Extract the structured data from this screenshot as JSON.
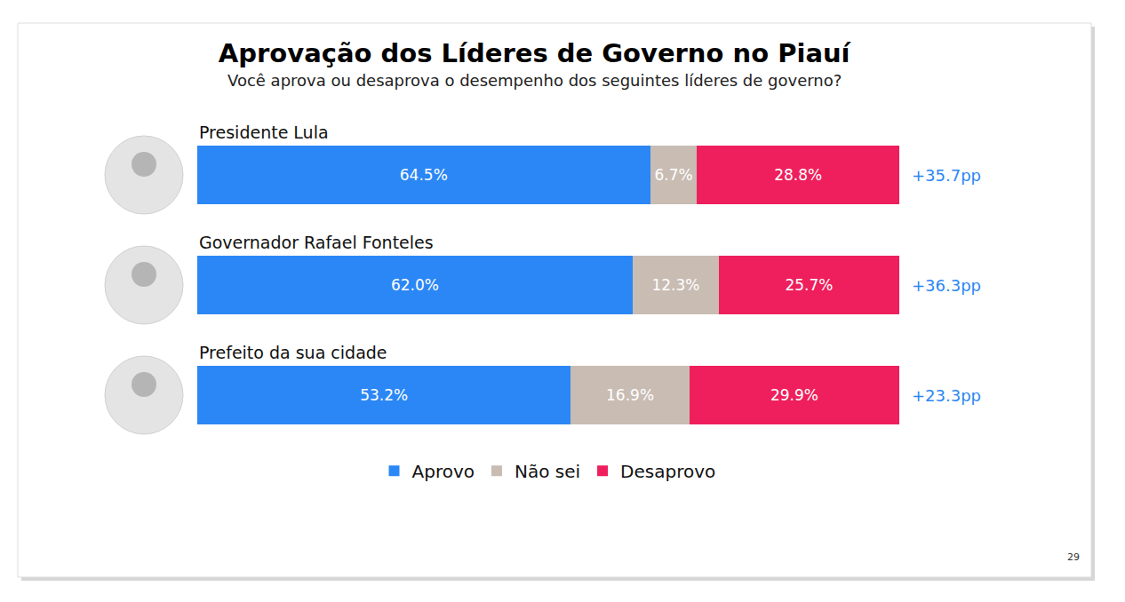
{
  "chart_data": {
    "type": "bar",
    "title": "Aprovação dos Líderes de Governo no Piauí",
    "subtitle": "Você aprova ou desaprova o desempenho dos seguintes líderes de governo?",
    "orientation": "horizontal",
    "stacked": true,
    "data_labels": true,
    "tick_labels": false,
    "grid": false,
    "legend": "bottom",
    "categories": [
      "Presidente Lula",
      "Governador Rafael Fonteles",
      "Prefeito da sua cidade"
    ],
    "xlim": [
      0,
      100
    ],
    "series": [
      {
        "name": "Aprovo",
        "color": "#2b87f5",
        "values": [
          64.5,
          62.0,
          53.2
        ],
        "value_labels": [
          "64.5%",
          "62.0%",
          "53.2%"
        ]
      },
      {
        "name": "Não sei",
        "color": "#c8bcb3",
        "values": [
          6.7,
          12.3,
          16.9
        ],
        "value_labels": [
          "6.7%",
          "12.3%",
          "16.9%"
        ]
      },
      {
        "name": "Desaprovo",
        "color": "#ee1f5c",
        "values": [
          28.8,
          25.7,
          29.9
        ],
        "value_labels": [
          "28.8%",
          "25.7%",
          "29.9%"
        ]
      }
    ],
    "annotations": [
      {
        "category": "Presidente Lula",
        "text": "+35.7pp"
      },
      {
        "category": "Governador Rafael Fonteles",
        "text": "+36.3pp"
      },
      {
        "category": "Prefeito da sua cidade",
        "text": "+23.3pp"
      }
    ],
    "page_number": "29"
  }
}
